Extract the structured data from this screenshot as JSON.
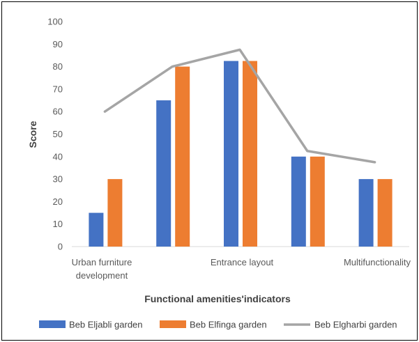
{
  "chart_data": {
    "type": "bar",
    "title": "",
    "xlabel": "Functional amenities'indicators",
    "ylabel": "Score",
    "ylim": [
      0,
      100
    ],
    "yticks": [
      0,
      10,
      20,
      30,
      40,
      50,
      60,
      70,
      80,
      90,
      100
    ],
    "categories": [
      "Urban furniture development",
      "",
      "Entrance layout",
      "",
      "Multifunctionality"
    ],
    "category_label_lines": [
      [
        "Urban furniture",
        "development"
      ],
      [],
      [
        "Entrance layout"
      ],
      [],
      [
        "Multifunctionality"
      ]
    ],
    "grid": false,
    "legend_position": "bottom",
    "series": [
      {
        "name": "Beb Eljabli garden",
        "kind": "bar",
        "color": "#4472C4",
        "values": [
          15,
          65,
          82.5,
          40,
          30
        ]
      },
      {
        "name": "Beb Elfinga garden",
        "kind": "bar",
        "color": "#ED7D31",
        "values": [
          30,
          80,
          82.5,
          40,
          30
        ]
      },
      {
        "name": "Beb Elgharbi garden",
        "kind": "line",
        "color": "#A5A5A5",
        "values": [
          60,
          80,
          87.5,
          42.5,
          37.5
        ]
      }
    ]
  }
}
